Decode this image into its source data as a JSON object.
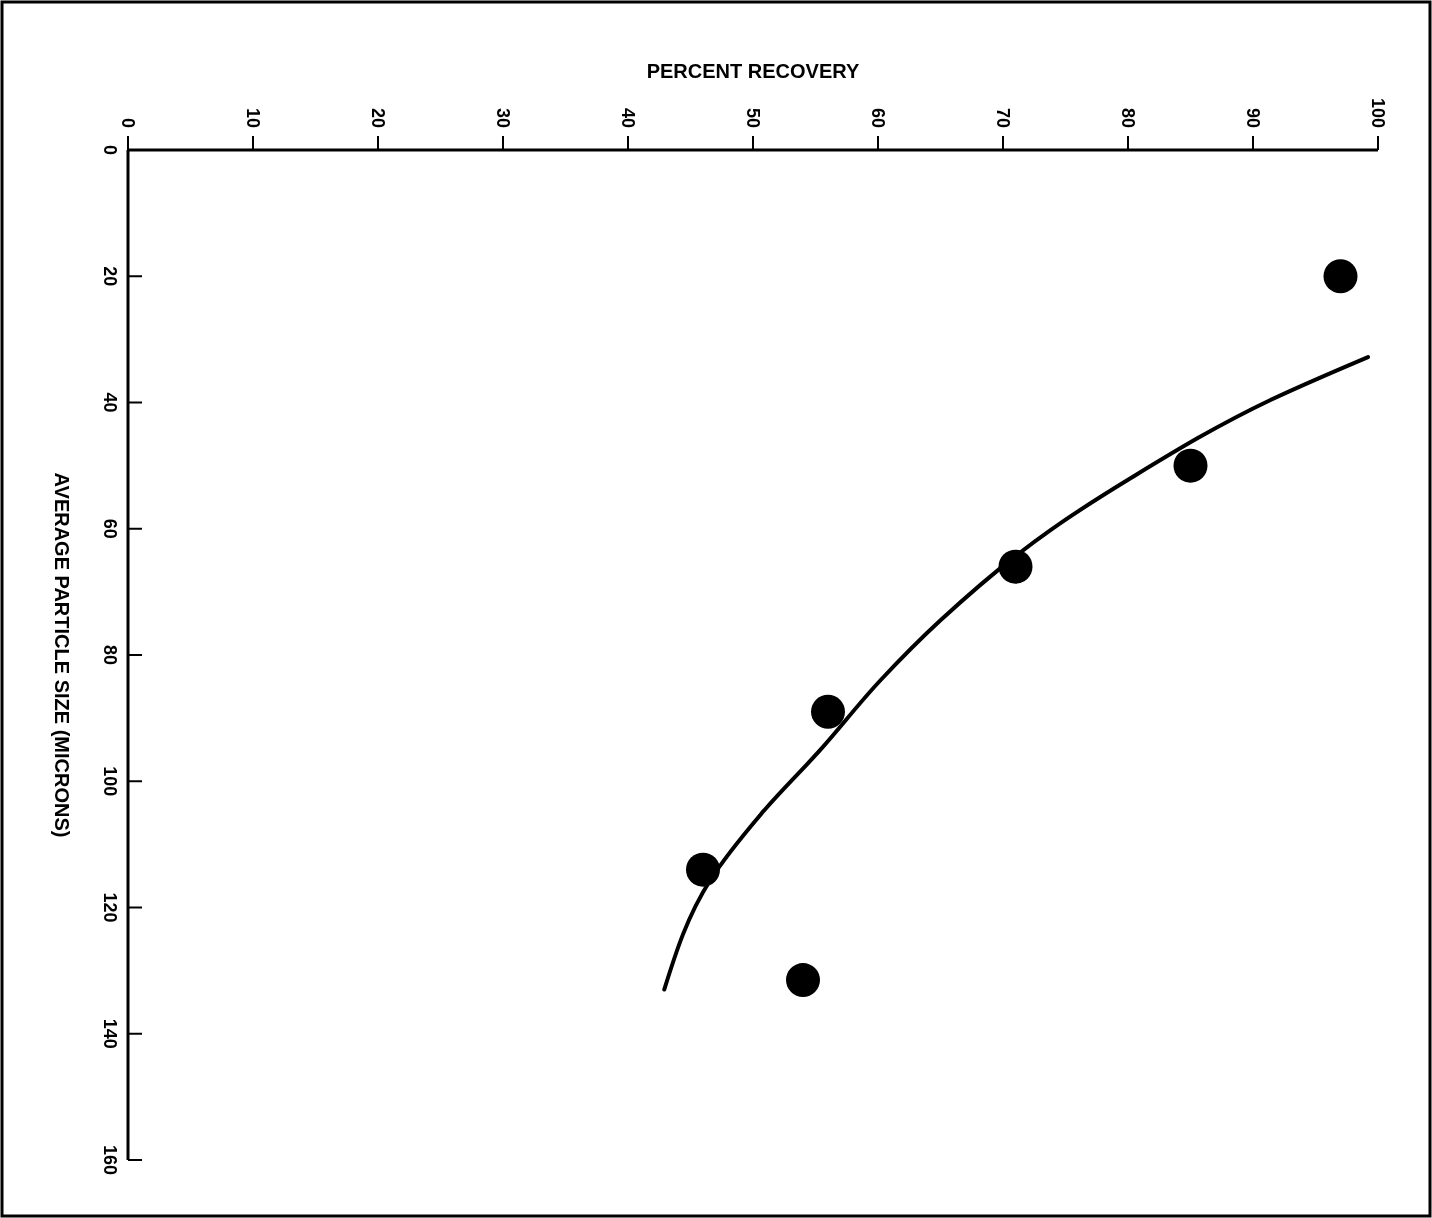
{
  "chart_data": {
    "type": "scatter",
    "xlabel": "PERCENT RECOVERY",
    "ylabel": "AVERAGE PARTICLE SIZE (MICRONS)",
    "xlim": [
      0,
      100
    ],
    "xticks": [
      0,
      10,
      20,
      30,
      40,
      50,
      60,
      70,
      80,
      90,
      100
    ],
    "ylim": [
      160,
      0
    ],
    "yticks": [
      0,
      20,
      40,
      60,
      80,
      100,
      120,
      140,
      160
    ],
    "grid": false,
    "marker": "circle",
    "series": [
      {
        "color": "#000000",
        "x": [
          97,
          85,
          71,
          56,
          46,
          54
        ],
        "values": [
          20,
          50,
          66,
          89,
          114,
          131.5
        ]
      },
      {
        "type": "line",
        "color": "#000000",
        "line_style": "solid",
        "marker": "none",
        "x": [
          99.2,
          91.4,
          80.2,
          73.8,
          65,
          60.2,
          55.4,
          50.6,
          46.6,
          42.9
        ],
        "values": [
          32.8,
          39.6,
          52,
          60.2,
          74.5,
          84,
          95,
          105.3,
          115.6,
          133
        ]
      }
    ]
  }
}
